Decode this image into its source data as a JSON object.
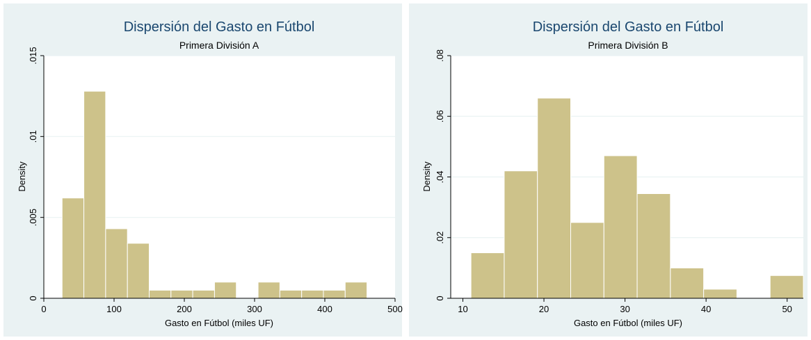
{
  "colors": {
    "bar_fill": "#cdc28a",
    "title": "#1a476f",
    "panel_background": "#eaf2f3"
  },
  "chart_data": [
    {
      "type": "bar",
      "title": "Dispersión del Gasto en Fútbol",
      "subtitle": "Primera División A",
      "xlabel": "Gasto en Fútbol (miles UF)",
      "ylabel": "Density",
      "xlim": [
        0,
        500
      ],
      "ylim": [
        0,
        0.015
      ],
      "xticks": [
        0,
        100,
        200,
        300,
        400,
        500
      ],
      "xtick_labels": [
        "0",
        "100",
        "200",
        "300",
        "400",
        "500"
      ],
      "yticks": [
        0,
        0.005,
        0.01,
        0.015
      ],
      "ytick_labels": [
        "0",
        ".005",
        ".01",
        ".015"
      ],
      "grid": true,
      "bins": [
        {
          "x0": 26,
          "x1": 57,
          "density": 0.0062
        },
        {
          "x0": 57,
          "x1": 88,
          "density": 0.0128
        },
        {
          "x0": 88,
          "x1": 119,
          "density": 0.0043
        },
        {
          "x0": 119,
          "x1": 150,
          "density": 0.0034
        },
        {
          "x0": 150,
          "x1": 181,
          "density": 0.0005
        },
        {
          "x0": 181,
          "x1": 212,
          "density": 0.0005
        },
        {
          "x0": 212,
          "x1": 243,
          "density": 0.0005
        },
        {
          "x0": 243,
          "x1": 274,
          "density": 0.001
        },
        {
          "x0": 274,
          "x1": 305,
          "density": 0
        },
        {
          "x0": 305,
          "x1": 336,
          "density": 0.001
        },
        {
          "x0": 336,
          "x1": 367,
          "density": 0.0005
        },
        {
          "x0": 367,
          "x1": 398,
          "density": 0.0005
        },
        {
          "x0": 398,
          "x1": 429,
          "density": 0.0005
        },
        {
          "x0": 429,
          "x1": 460,
          "density": 0.001
        }
      ]
    },
    {
      "type": "bar",
      "title": "Dispersión del Gasto en Fútbol",
      "subtitle": "Primera División B",
      "xlabel": "Gasto en Fútbol (miles UF)",
      "ylabel": "Density",
      "xlim": [
        8.5,
        52
      ],
      "ylim": [
        0,
        0.08
      ],
      "xticks": [
        10,
        20,
        30,
        40,
        50
      ],
      "xtick_labels": [
        "10",
        "20",
        "30",
        "40",
        "50"
      ],
      "yticks": [
        0,
        0.02,
        0.04,
        0.06,
        0.08
      ],
      "ytick_labels": [
        "0",
        ".02",
        ".04",
        ".06",
        ".08"
      ],
      "grid": true,
      "bins": [
        {
          "x0": 11.0,
          "x1": 15.1,
          "density": 0.015
        },
        {
          "x0": 15.1,
          "x1": 19.2,
          "density": 0.042
        },
        {
          "x0": 19.2,
          "x1": 23.3,
          "density": 0.066
        },
        {
          "x0": 23.3,
          "x1": 27.4,
          "density": 0.025
        },
        {
          "x0": 27.4,
          "x1": 31.5,
          "density": 0.047
        },
        {
          "x0": 31.5,
          "x1": 35.6,
          "density": 0.0345
        },
        {
          "x0": 35.6,
          "x1": 39.7,
          "density": 0.01
        },
        {
          "x0": 39.7,
          "x1": 43.8,
          "density": 0.003
        },
        {
          "x0": 43.8,
          "x1": 47.9,
          "density": 0
        },
        {
          "x0": 47.9,
          "x1": 52.0,
          "density": 0.0075
        }
      ]
    }
  ]
}
